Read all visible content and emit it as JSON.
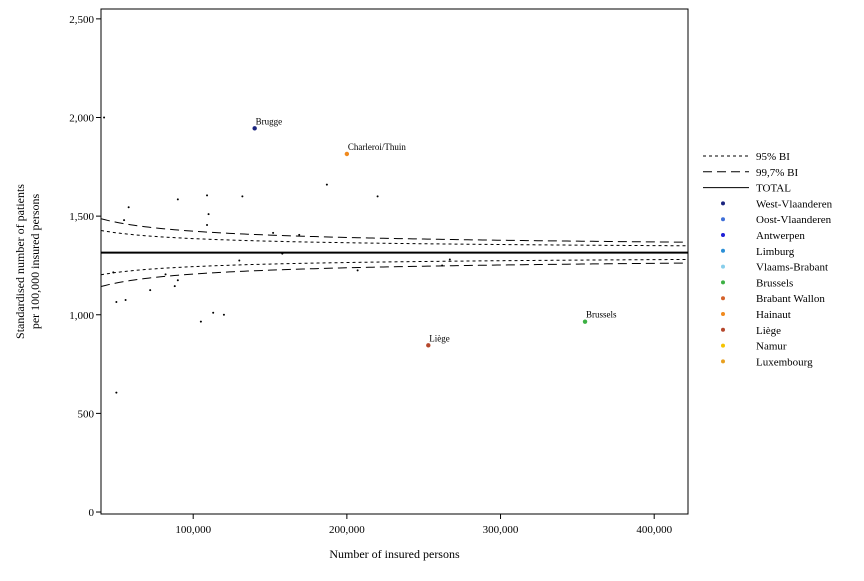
{
  "chart_data": {
    "type": "scatter",
    "title": "",
    "xlabel": "Number of insured persons",
    "ylabel_lines": [
      "Standardised number of patients",
      "per 100,000 insured persons"
    ],
    "xlim": [
      40000,
      422000
    ],
    "ylim": [
      -10,
      2550
    ],
    "x_ticks": [
      {
        "value": 100000,
        "label": "100,000"
      },
      {
        "value": 200000,
        "label": "200,000"
      },
      {
        "value": 300000,
        "label": "300,000"
      },
      {
        "value": 400000,
        "label": "400,000"
      }
    ],
    "y_ticks": [
      {
        "value": 0,
        "label": "0"
      },
      {
        "value": 500,
        "label": "500"
      },
      {
        "value": 1000,
        "label": "1,000"
      },
      {
        "value": 1500,
        "label": "1,500"
      },
      {
        "value": 2000,
        "label": "2,000"
      },
      {
        "value": 2500,
        "label": "2,500"
      }
    ],
    "total": 1315,
    "limits": {
      "ci95": {
        "name": "95% BI",
        "z": 1.96,
        "scale": 100000,
        "dash": "3,3"
      },
      "ci997": {
        "name": "99,7% BI",
        "z": 3.0,
        "scale": 100000,
        "dash": "9,5"
      },
      "total": {
        "name": "TOTAL"
      }
    },
    "legend_position": "right",
    "legend": [
      {
        "name": "95% BI",
        "kind": "short-dash"
      },
      {
        "name": "99,7% BI",
        "kind": "long-dash"
      },
      {
        "name": "TOTAL",
        "kind": "solid"
      },
      {
        "name": "West-Vlaanderen",
        "kind": "dot",
        "color": "#1a237e"
      },
      {
        "name": "Oost-Vlaanderen",
        "kind": "dot",
        "color": "#3f6fd8"
      },
      {
        "name": "Antwerpen",
        "kind": "dot",
        "color": "#1f1fd6"
      },
      {
        "name": "Limburg",
        "kind": "dot",
        "color": "#2b8fd6"
      },
      {
        "name": "Vlaams-Brabant",
        "kind": "dot",
        "color": "#87ceeb"
      },
      {
        "name": "Brussels",
        "kind": "dot",
        "color": "#3cb043"
      },
      {
        "name": "Brabant Wallon",
        "kind": "dot",
        "color": "#d4622a"
      },
      {
        "name": "Hainaut",
        "kind": "dot",
        "color": "#f08a1e"
      },
      {
        "name": "Liège",
        "kind": "dot",
        "color": "#b5472c"
      },
      {
        "name": "Namur",
        "kind": "dot",
        "color": "#f5c400"
      },
      {
        "name": "Luxembourg",
        "kind": "dot",
        "color": "#e8a020"
      }
    ],
    "highlighted_points": [
      {
        "x": 140000,
        "y": 1945,
        "label": "Brugge",
        "color": "#1a237e"
      },
      {
        "x": 200000,
        "y": 1815,
        "label": "Charleroi/Thuin",
        "color": "#f08a1e"
      },
      {
        "x": 253000,
        "y": 845,
        "label": "Liège",
        "color": "#b5472c"
      },
      {
        "x": 355000,
        "y": 965,
        "label": "Brussels",
        "color": "#3cb043"
      }
    ],
    "other_points": [
      {
        "x": 42000,
        "y": 2000
      },
      {
        "x": 55000,
        "y": 1480
      },
      {
        "x": 58000,
        "y": 1545
      },
      {
        "x": 90000,
        "y": 1585
      },
      {
        "x": 109000,
        "y": 1605
      },
      {
        "x": 110000,
        "y": 1510
      },
      {
        "x": 109000,
        "y": 1455
      },
      {
        "x": 132000,
        "y": 1600
      },
      {
        "x": 152000,
        "y": 1415
      },
      {
        "x": 158000,
        "y": 1310
      },
      {
        "x": 169000,
        "y": 1405
      },
      {
        "x": 187000,
        "y": 1660
      },
      {
        "x": 220000,
        "y": 1600
      },
      {
        "x": 130000,
        "y": 1275
      },
      {
        "x": 48000,
        "y": 1215
      },
      {
        "x": 50000,
        "y": 1065
      },
      {
        "x": 56000,
        "y": 1075
      },
      {
        "x": 72000,
        "y": 1125
      },
      {
        "x": 82000,
        "y": 1205
      },
      {
        "x": 88000,
        "y": 1145
      },
      {
        "x": 90000,
        "y": 1175
      },
      {
        "x": 105000,
        "y": 965
      },
      {
        "x": 113000,
        "y": 1010
      },
      {
        "x": 120000,
        "y": 1000
      },
      {
        "x": 207000,
        "y": 1225
      },
      {
        "x": 262000,
        "y": 1250
      },
      {
        "x": 267000,
        "y": 1280
      },
      {
        "x": 50000,
        "y": 605
      }
    ]
  }
}
